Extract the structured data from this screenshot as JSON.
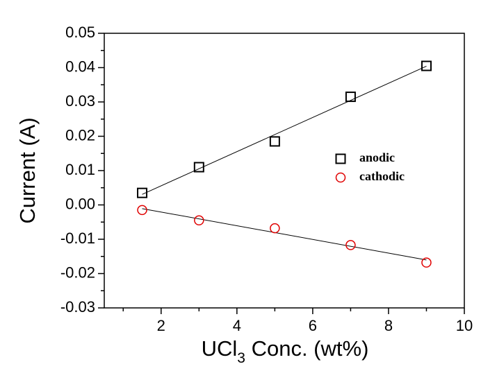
{
  "chart_data": {
    "type": "scatter",
    "x_label": [
      "UCl",
      "3",
      " Conc. (wt%)"
    ],
    "y_label": "Current (A)",
    "xlim": [
      0.5,
      10
    ],
    "xticks": [
      2,
      4,
      6,
      8,
      10
    ],
    "xminorticks": [
      1,
      3,
      5,
      7,
      9
    ],
    "ylim": [
      -0.03,
      0.05
    ],
    "yticks": [
      -0.03,
      -0.02,
      -0.01,
      {
        "value": 0,
        "label": "0.00"
      },
      0.01,
      0.02,
      0.03,
      0.04,
      0.05
    ],
    "yminorticks": [
      -0.025,
      -0.015,
      -0.005,
      0.005,
      0.015,
      0.025,
      0.035,
      0.045
    ],
    "legend": "right",
    "series": [
      {
        "name": "anodic",
        "color": "#000000",
        "marker": "square",
        "x": [
          1.5,
          3,
          5,
          7,
          9
        ],
        "values": [
          0.0035,
          0.011,
          0.0185,
          0.0315,
          0.0405
        ]
      },
      {
        "name": "cathodic",
        "color": "#e00000",
        "marker": "circle",
        "x": [
          1.5,
          3,
          5,
          7,
          9
        ],
        "values": [
          -0.0015,
          -0.0045,
          -0.0068,
          -0.0117,
          -0.0168
        ]
      }
    ]
  }
}
